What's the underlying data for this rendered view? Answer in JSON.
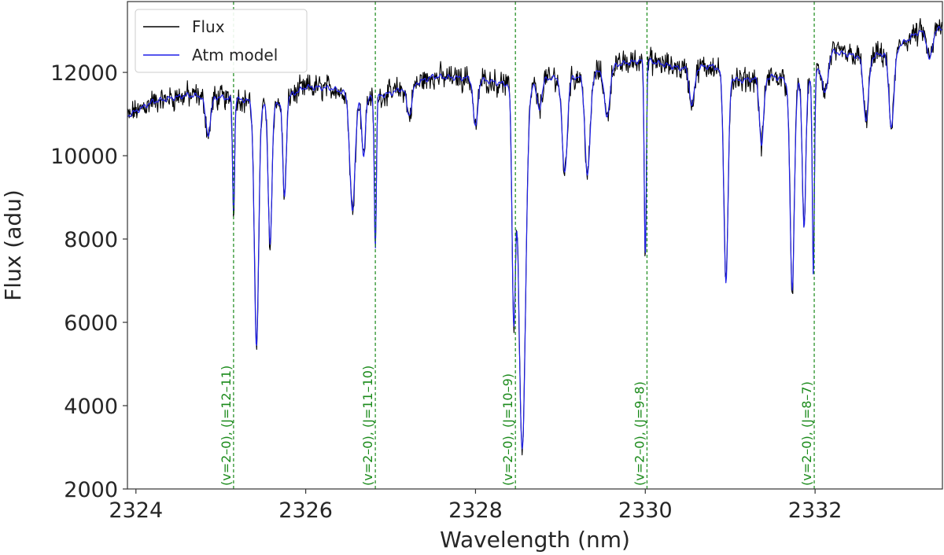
{
  "chart_data": {
    "type": "line",
    "title": "",
    "xlabel": "Wavelength (nm)",
    "ylabel": "Flux (adu)",
    "xlim": [
      2323.9,
      2333.5
    ],
    "ylim": [
      2000,
      13700
    ],
    "xticks": [
      2324,
      2326,
      2328,
      2330,
      2332
    ],
    "yticks": [
      2000,
      4000,
      6000,
      8000,
      10000,
      12000
    ],
    "grid": false,
    "legend_position": "top-left",
    "continuum": [
      [
        2323.9,
        10950
      ],
      [
        2324.2,
        11300
      ],
      [
        2324.6,
        11450
      ],
      [
        2325.0,
        11400
      ],
      [
        2325.3,
        11330
      ],
      [
        2325.6,
        11200
      ],
      [
        2326.0,
        11650
      ],
      [
        2326.3,
        11620
      ],
      [
        2326.7,
        11350
      ],
      [
        2327.0,
        11500
      ],
      [
        2327.5,
        11900
      ],
      [
        2328.0,
        11850
      ],
      [
        2328.4,
        11700
      ],
      [
        2328.8,
        11850
      ],
      [
        2329.3,
        11900
      ],
      [
        2329.7,
        12200
      ],
      [
        2330.0,
        12300
      ],
      [
        2330.4,
        12100
      ],
      [
        2330.8,
        12150
      ],
      [
        2331.1,
        11800
      ],
      [
        2331.5,
        11900
      ],
      [
        2331.9,
        11700
      ],
      [
        2332.2,
        12500
      ],
      [
        2332.6,
        12350
      ],
      [
        2332.9,
        12500
      ],
      [
        2333.2,
        12950
      ],
      [
        2333.5,
        13050
      ]
    ],
    "absorption_lines": [
      {
        "center": 2324.85,
        "depth": 900,
        "width": 0.03
      },
      {
        "center": 2325.15,
        "depth": 2700,
        "width": 0.012
      },
      {
        "center": 2325.42,
        "depth": 5900,
        "width": 0.025
      },
      {
        "center": 2325.58,
        "depth": 3300,
        "width": 0.022
      },
      {
        "center": 2325.75,
        "depth": 2400,
        "width": 0.02
      },
      {
        "center": 2326.55,
        "depth": 2800,
        "width": 0.03
      },
      {
        "center": 2326.68,
        "depth": 1400,
        "width": 0.02
      },
      {
        "center": 2326.82,
        "depth": 3600,
        "width": 0.012
      },
      {
        "center": 2327.22,
        "depth": 700,
        "width": 0.03
      },
      {
        "center": 2328.0,
        "depth": 1200,
        "width": 0.025
      },
      {
        "center": 2328.45,
        "depth": 5400,
        "width": 0.02
      },
      {
        "center": 2328.55,
        "depth": 8800,
        "width": 0.04
      },
      {
        "center": 2328.75,
        "depth": 700,
        "width": 0.03
      },
      {
        "center": 2329.05,
        "depth": 2300,
        "width": 0.03
      },
      {
        "center": 2329.32,
        "depth": 2400,
        "width": 0.03
      },
      {
        "center": 2329.55,
        "depth": 1200,
        "width": 0.03
      },
      {
        "center": 2330.0,
        "depth": 4700,
        "width": 0.012
      },
      {
        "center": 2330.55,
        "depth": 900,
        "width": 0.03
      },
      {
        "center": 2330.95,
        "depth": 5000,
        "width": 0.025
      },
      {
        "center": 2331.37,
        "depth": 1600,
        "width": 0.025
      },
      {
        "center": 2331.73,
        "depth": 5000,
        "width": 0.025
      },
      {
        "center": 2331.87,
        "depth": 3400,
        "width": 0.02
      },
      {
        "center": 2331.98,
        "depth": 4800,
        "width": 0.012
      },
      {
        "center": 2332.12,
        "depth": 800,
        "width": 0.03
      },
      {
        "center": 2332.6,
        "depth": 1500,
        "width": 0.03
      },
      {
        "center": 2332.9,
        "depth": 1800,
        "width": 0.03
      },
      {
        "center": 2333.35,
        "depth": 700,
        "width": 0.03
      }
    ],
    "series": [
      {
        "name": "Flux",
        "color": "#000000",
        "noise_adu": 220
      },
      {
        "name": "Atm model",
        "color": "#1f1fe8",
        "noise_adu": 0
      }
    ],
    "vlines": [
      {
        "x": 2325.15,
        "label": "(v=2–0), (J=12–11)",
        "color": "#1a8a1a"
      },
      {
        "x": 2326.82,
        "label": "(v=2–0), (J=11–10)",
        "color": "#1a8a1a"
      },
      {
        "x": 2328.47,
        "label": "(v=2–0), (J=10–9)",
        "color": "#1a8a1a"
      },
      {
        "x": 2330.02,
        "label": "(v=2–0), (J=9–8)",
        "color": "#1a8a1a"
      },
      {
        "x": 2331.99,
        "label": "(v=2–0), (J=8–7)",
        "color": "#1a8a1a"
      }
    ]
  }
}
